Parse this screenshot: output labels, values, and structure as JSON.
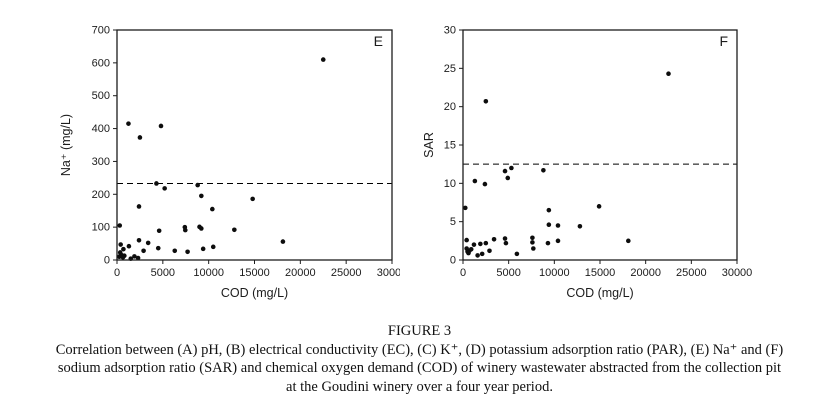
{
  "page": {
    "background": "#ffffff",
    "text_color": "#111111"
  },
  "figure": {
    "caption_title": "FIGURE 3",
    "caption_lines": [
      "Correlation between (A) pH, (B) electrical conductivity (EC), (C) K⁺, (D) potassium adsorption ratio (PAR), (E) Na⁺ and (F)",
      "sodium adsorption ratio (SAR) and chemical oxygen demand (COD) of winery wastewater abstracted from the collection pit",
      "at the Goudini winery over a four year period."
    ]
  },
  "chart_data": [
    {
      "type": "scatter",
      "panel_label": "E",
      "title": "",
      "xlabel": "COD (mg/L)",
      "ylabel": "Na⁺ (mg/L)",
      "xlim": [
        0,
        30000
      ],
      "ylim": [
        0,
        700
      ],
      "xticks": [
        0,
        5000,
        10000,
        15000,
        20000,
        25000,
        30000
      ],
      "yticks": [
        0,
        100,
        200,
        300,
        400,
        500,
        600,
        700
      ],
      "grid": false,
      "legend": "none",
      "threshold_line": {
        "y": 233,
        "style": "dashed",
        "color": "#000000"
      },
      "marker": {
        "shape": "circle",
        "color": "#0d0d0d",
        "radius": 2.3
      },
      "points": [
        [
          22500,
          610
        ],
        [
          1250,
          415
        ],
        [
          4800,
          408
        ],
        [
          2500,
          373
        ],
        [
          4300,
          233
        ],
        [
          8800,
          228
        ],
        [
          5200,
          218
        ],
        [
          9200,
          195
        ],
        [
          14800,
          186
        ],
        [
          2400,
          163
        ],
        [
          10400,
          155
        ],
        [
          300,
          105
        ],
        [
          9000,
          101
        ],
        [
          9200,
          96
        ],
        [
          7400,
          100
        ],
        [
          7450,
          91
        ],
        [
          12800,
          92
        ],
        [
          4600,
          89
        ],
        [
          2400,
          60
        ],
        [
          3400,
          52
        ],
        [
          18100,
          56
        ],
        [
          400,
          47
        ],
        [
          1300,
          42
        ],
        [
          10500,
          40
        ],
        [
          9400,
          34
        ],
        [
          4500,
          36
        ],
        [
          700,
          33
        ],
        [
          2900,
          28
        ],
        [
          6300,
          28
        ],
        [
          7700,
          25
        ],
        [
          350,
          23
        ],
        [
          500,
          15
        ],
        [
          800,
          13
        ],
        [
          250,
          10
        ],
        [
          1900,
          11
        ],
        [
          650,
          8
        ],
        [
          2300,
          6
        ],
        [
          1500,
          4
        ]
      ]
    },
    {
      "type": "scatter",
      "panel_label": "F",
      "title": "",
      "xlabel": "COD (mg/L)",
      "ylabel": "SAR",
      "xlim": [
        0,
        30000
      ],
      "ylim": [
        0,
        30
      ],
      "xticks": [
        0,
        5000,
        10000,
        15000,
        20000,
        25000,
        30000
      ],
      "yticks": [
        0,
        5,
        10,
        15,
        20,
        25,
        30
      ],
      "grid": false,
      "legend": "none",
      "threshold_line": {
        "y": 12.5,
        "style": "dashed",
        "color": "#000000"
      },
      "marker": {
        "shape": "circle",
        "color": "#0d0d0d",
        "radius": 2.3
      },
      "points": [
        [
          22500,
          24.3
        ],
        [
          2500,
          20.7
        ],
        [
          5300,
          12.0
        ],
        [
          4600,
          11.6
        ],
        [
          8800,
          11.7
        ],
        [
          4900,
          10.7
        ],
        [
          1300,
          10.3
        ],
        [
          2400,
          9.9
        ],
        [
          250,
          6.8
        ],
        [
          9400,
          6.5
        ],
        [
          14900,
          7.0
        ],
        [
          9400,
          4.6
        ],
        [
          10400,
          4.5
        ],
        [
          12800,
          4.4
        ],
        [
          10400,
          2.5
        ],
        [
          9300,
          2.2
        ],
        [
          18100,
          2.5
        ],
        [
          7600,
          2.9
        ],
        [
          7600,
          2.3
        ],
        [
          7700,
          1.5
        ],
        [
          4600,
          2.8
        ],
        [
          4700,
          2.2
        ],
        [
          3400,
          2.7
        ],
        [
          2500,
          2.2
        ],
        [
          1900,
          2.1
        ],
        [
          1200,
          2.0
        ],
        [
          400,
          2.6
        ],
        [
          400,
          1.5
        ],
        [
          500,
          1.1
        ],
        [
          700,
          1.2
        ],
        [
          900,
          1.4
        ],
        [
          600,
          0.9
        ],
        [
          1600,
          0.6
        ],
        [
          2100,
          0.8
        ],
        [
          2900,
          1.2
        ],
        [
          5900,
          0.8
        ]
      ]
    }
  ]
}
